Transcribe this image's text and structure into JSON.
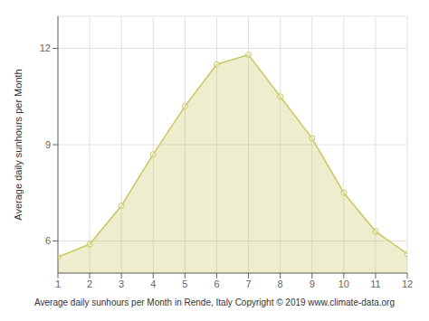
{
  "chart_data": {
    "type": "area",
    "x": [
      1,
      2,
      3,
      4,
      5,
      6,
      7,
      8,
      9,
      10,
      11,
      12
    ],
    "values": [
      5.5,
      5.9,
      7.1,
      8.7,
      10.2,
      11.5,
      11.8,
      10.5,
      9.2,
      7.5,
      6.3,
      5.6
    ],
    "xlabel": "Average daily sunhours per Month in Rende, Italy Copyright © 2019 www.climate-data.org",
    "ylabel": "Average daily sunhours per Month",
    "xlim": [
      1,
      12
    ],
    "xticks": [
      1,
      2,
      3,
      4,
      5,
      6,
      7,
      8,
      9,
      10,
      11,
      12
    ],
    "ylim": [
      5.0,
      13.0
    ],
    "yticks": [
      6,
      9,
      12
    ],
    "grid": true,
    "color": "#C8C860",
    "marker": "circle"
  }
}
